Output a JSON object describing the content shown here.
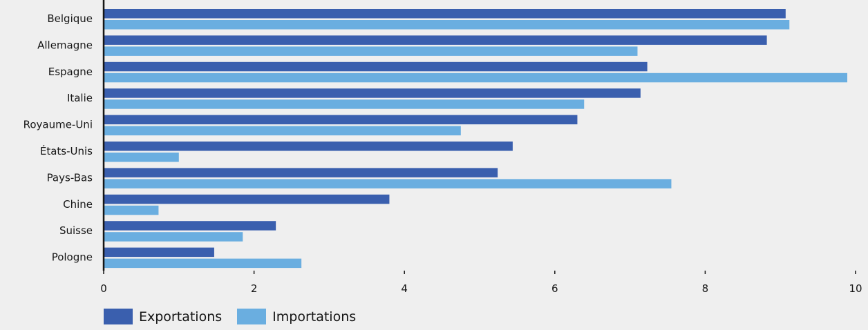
{
  "chart_data": {
    "type": "bar",
    "orientation": "horizontal",
    "categories": [
      "Belgique",
      "Allemagne",
      "Espagne",
      "Italie",
      "Royaume-Uni",
      "États-Unis",
      "Pays-Bas",
      "Chine",
      "Suisse",
      "Pologne"
    ],
    "series": [
      {
        "name": "Exportations",
        "color": "#3a5fae",
        "values": [
          9.07,
          8.82,
          7.23,
          7.14,
          6.3,
          5.44,
          5.24,
          3.8,
          2.29,
          1.47
        ]
      },
      {
        "name": "Importations",
        "color": "#6aaee0",
        "values": [
          9.12,
          7.1,
          9.89,
          6.39,
          4.75,
          1.0,
          7.55,
          0.73,
          1.85,
          2.63
        ]
      }
    ],
    "xlim": [
      0,
      10
    ],
    "xticks": [
      "0",
      "2",
      "4",
      "6",
      "8",
      "10"
    ],
    "xlabel": "",
    "ylabel": "",
    "title": "",
    "grid": false,
    "legend_position": "bottom-left"
  },
  "legend": {
    "items": [
      {
        "label": "Exportations",
        "color": "#3a5fae"
      },
      {
        "label": "Importations",
        "color": "#6aaee0"
      }
    ]
  }
}
